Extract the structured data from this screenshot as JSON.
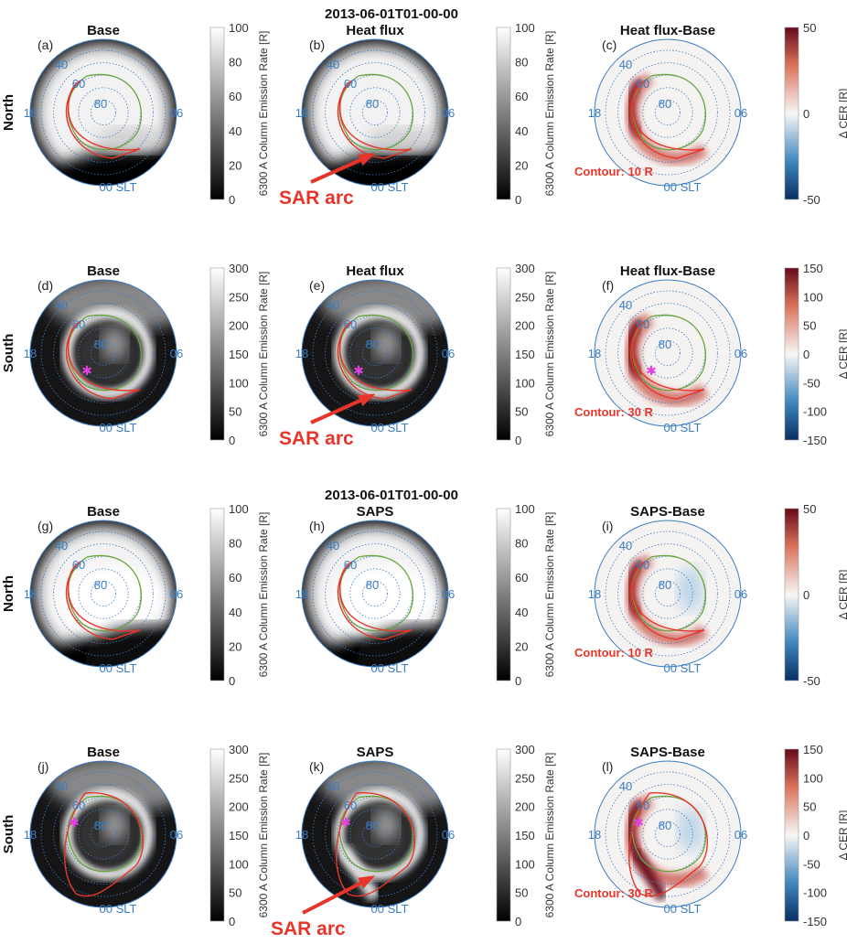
{
  "figure_titles": [
    "2013-06-01T01-00-00",
    "2013-06-01T01-00-00"
  ],
  "axis_labels": {
    "lat_40": "40",
    "lat_60": "60",
    "lat_80": "80",
    "left": "18",
    "right": "06",
    "bottom": "00 SLT"
  },
  "annotations": {
    "sar_arc": "SAR arc"
  },
  "colors": {
    "accent_red": "#e8352a",
    "axis_blue": "#3a7cc4",
    "green_contour": "#6aa53a",
    "marker": "#e040e0"
  },
  "chart_data": {
    "type": "heatmap",
    "projection": "polar",
    "rows": [
      {
        "hemisphere": "North",
        "panels": [
          {
            "label": "(a)",
            "title": "Base",
            "colorbar": {
              "label": "6300 A Column Emission Rate [R]",
              "ticks": [
                "100",
                "80",
                "60",
                "40",
                "20",
                "0"
              ],
              "range": [
                0,
                100
              ],
              "colormap": "gray"
            }
          },
          {
            "label": "(b)",
            "title": "Heat flux",
            "colorbar": {
              "label": "6300 A Column Emission Rate [R]",
              "ticks": [
                "100",
                "80",
                "60",
                "40",
                "20",
                "0"
              ],
              "range": [
                0,
                100
              ],
              "colormap": "gray"
            },
            "annotation": "SAR arc"
          },
          {
            "label": "(c)",
            "title": "Heat flux-Base",
            "colorbar": {
              "label": "Δ CER [R]",
              "ticks": [
                "50",
                "0",
                "-50"
              ],
              "range": [
                -50,
                50
              ],
              "colormap": "diverging"
            },
            "contour": "Contour: 10 R"
          }
        ]
      },
      {
        "hemisphere": "South",
        "panels": [
          {
            "label": "(d)",
            "title": "Base",
            "colorbar": {
              "label": "6300 A Column Emission Rate [R]",
              "ticks": [
                "300",
                "250",
                "200",
                "150",
                "100",
                "50",
                "0"
              ],
              "range": [
                0,
                300
              ],
              "colormap": "gray"
            }
          },
          {
            "label": "(e)",
            "title": "Heat flux",
            "colorbar": {
              "label": "6300 A Column Emission Rate [R]",
              "ticks": [
                "300",
                "250",
                "200",
                "150",
                "100",
                "50",
                "0"
              ],
              "range": [
                0,
                300
              ],
              "colormap": "gray"
            },
            "annotation": "SAR arc"
          },
          {
            "label": "(f)",
            "title": "Heat flux-Base",
            "colorbar": {
              "label": "Δ CER [R]",
              "ticks": [
                "150",
                "100",
                "50",
                "0",
                "-50",
                "-100",
                "-150"
              ],
              "range": [
                -150,
                150
              ],
              "colormap": "diverging"
            },
            "contour": "Contour: 30 R"
          }
        ]
      },
      {
        "hemisphere": "North",
        "panels": [
          {
            "label": "(g)",
            "title": "Base",
            "colorbar": {
              "label": "6300 A Column Emission Rate [R]",
              "ticks": [
                "100",
                "80",
                "60",
                "40",
                "20",
                "0"
              ],
              "range": [
                0,
                100
              ],
              "colormap": "gray"
            }
          },
          {
            "label": "(h)",
            "title": "SAPS",
            "colorbar": {
              "label": "6300 A Column Emission Rate [R]",
              "ticks": [
                "100",
                "80",
                "60",
                "40",
                "20",
                "0"
              ],
              "range": [
                0,
                100
              ],
              "colormap": "gray"
            }
          },
          {
            "label": "(i)",
            "title": "SAPS-Base",
            "colorbar": {
              "label": "Δ CER [R]",
              "ticks": [
                "50",
                "0",
                "-50"
              ],
              "range": [
                -50,
                50
              ],
              "colormap": "diverging"
            },
            "contour": "Contour: 10 R"
          }
        ]
      },
      {
        "hemisphere": "South",
        "panels": [
          {
            "label": "(j)",
            "title": "Base",
            "colorbar": {
              "label": "6300 A Column Emission Rate [R]",
              "ticks": [
                "300",
                "250",
                "200",
                "150",
                "100",
                "50",
                "0"
              ],
              "range": [
                0,
                300
              ],
              "colormap": "gray"
            }
          },
          {
            "label": "(k)",
            "title": "SAPS",
            "colorbar": {
              "label": "6300 A Column Emission Rate [R]",
              "ticks": [
                "300",
                "250",
                "200",
                "150",
                "100",
                "50",
                "0"
              ],
              "range": [
                0,
                300
              ],
              "colormap": "gray"
            },
            "annotation": "SAR arc"
          },
          {
            "label": "(l)",
            "title": "SAPS-Base",
            "colorbar": {
              "label": "Δ CER [R]",
              "ticks": [
                "150",
                "100",
                "50",
                "0",
                "-50",
                "-100",
                "-150"
              ],
              "range": [
                -150,
                150
              ],
              "colormap": "diverging"
            },
            "contour": "Contour: 30 R"
          }
        ]
      }
    ]
  }
}
